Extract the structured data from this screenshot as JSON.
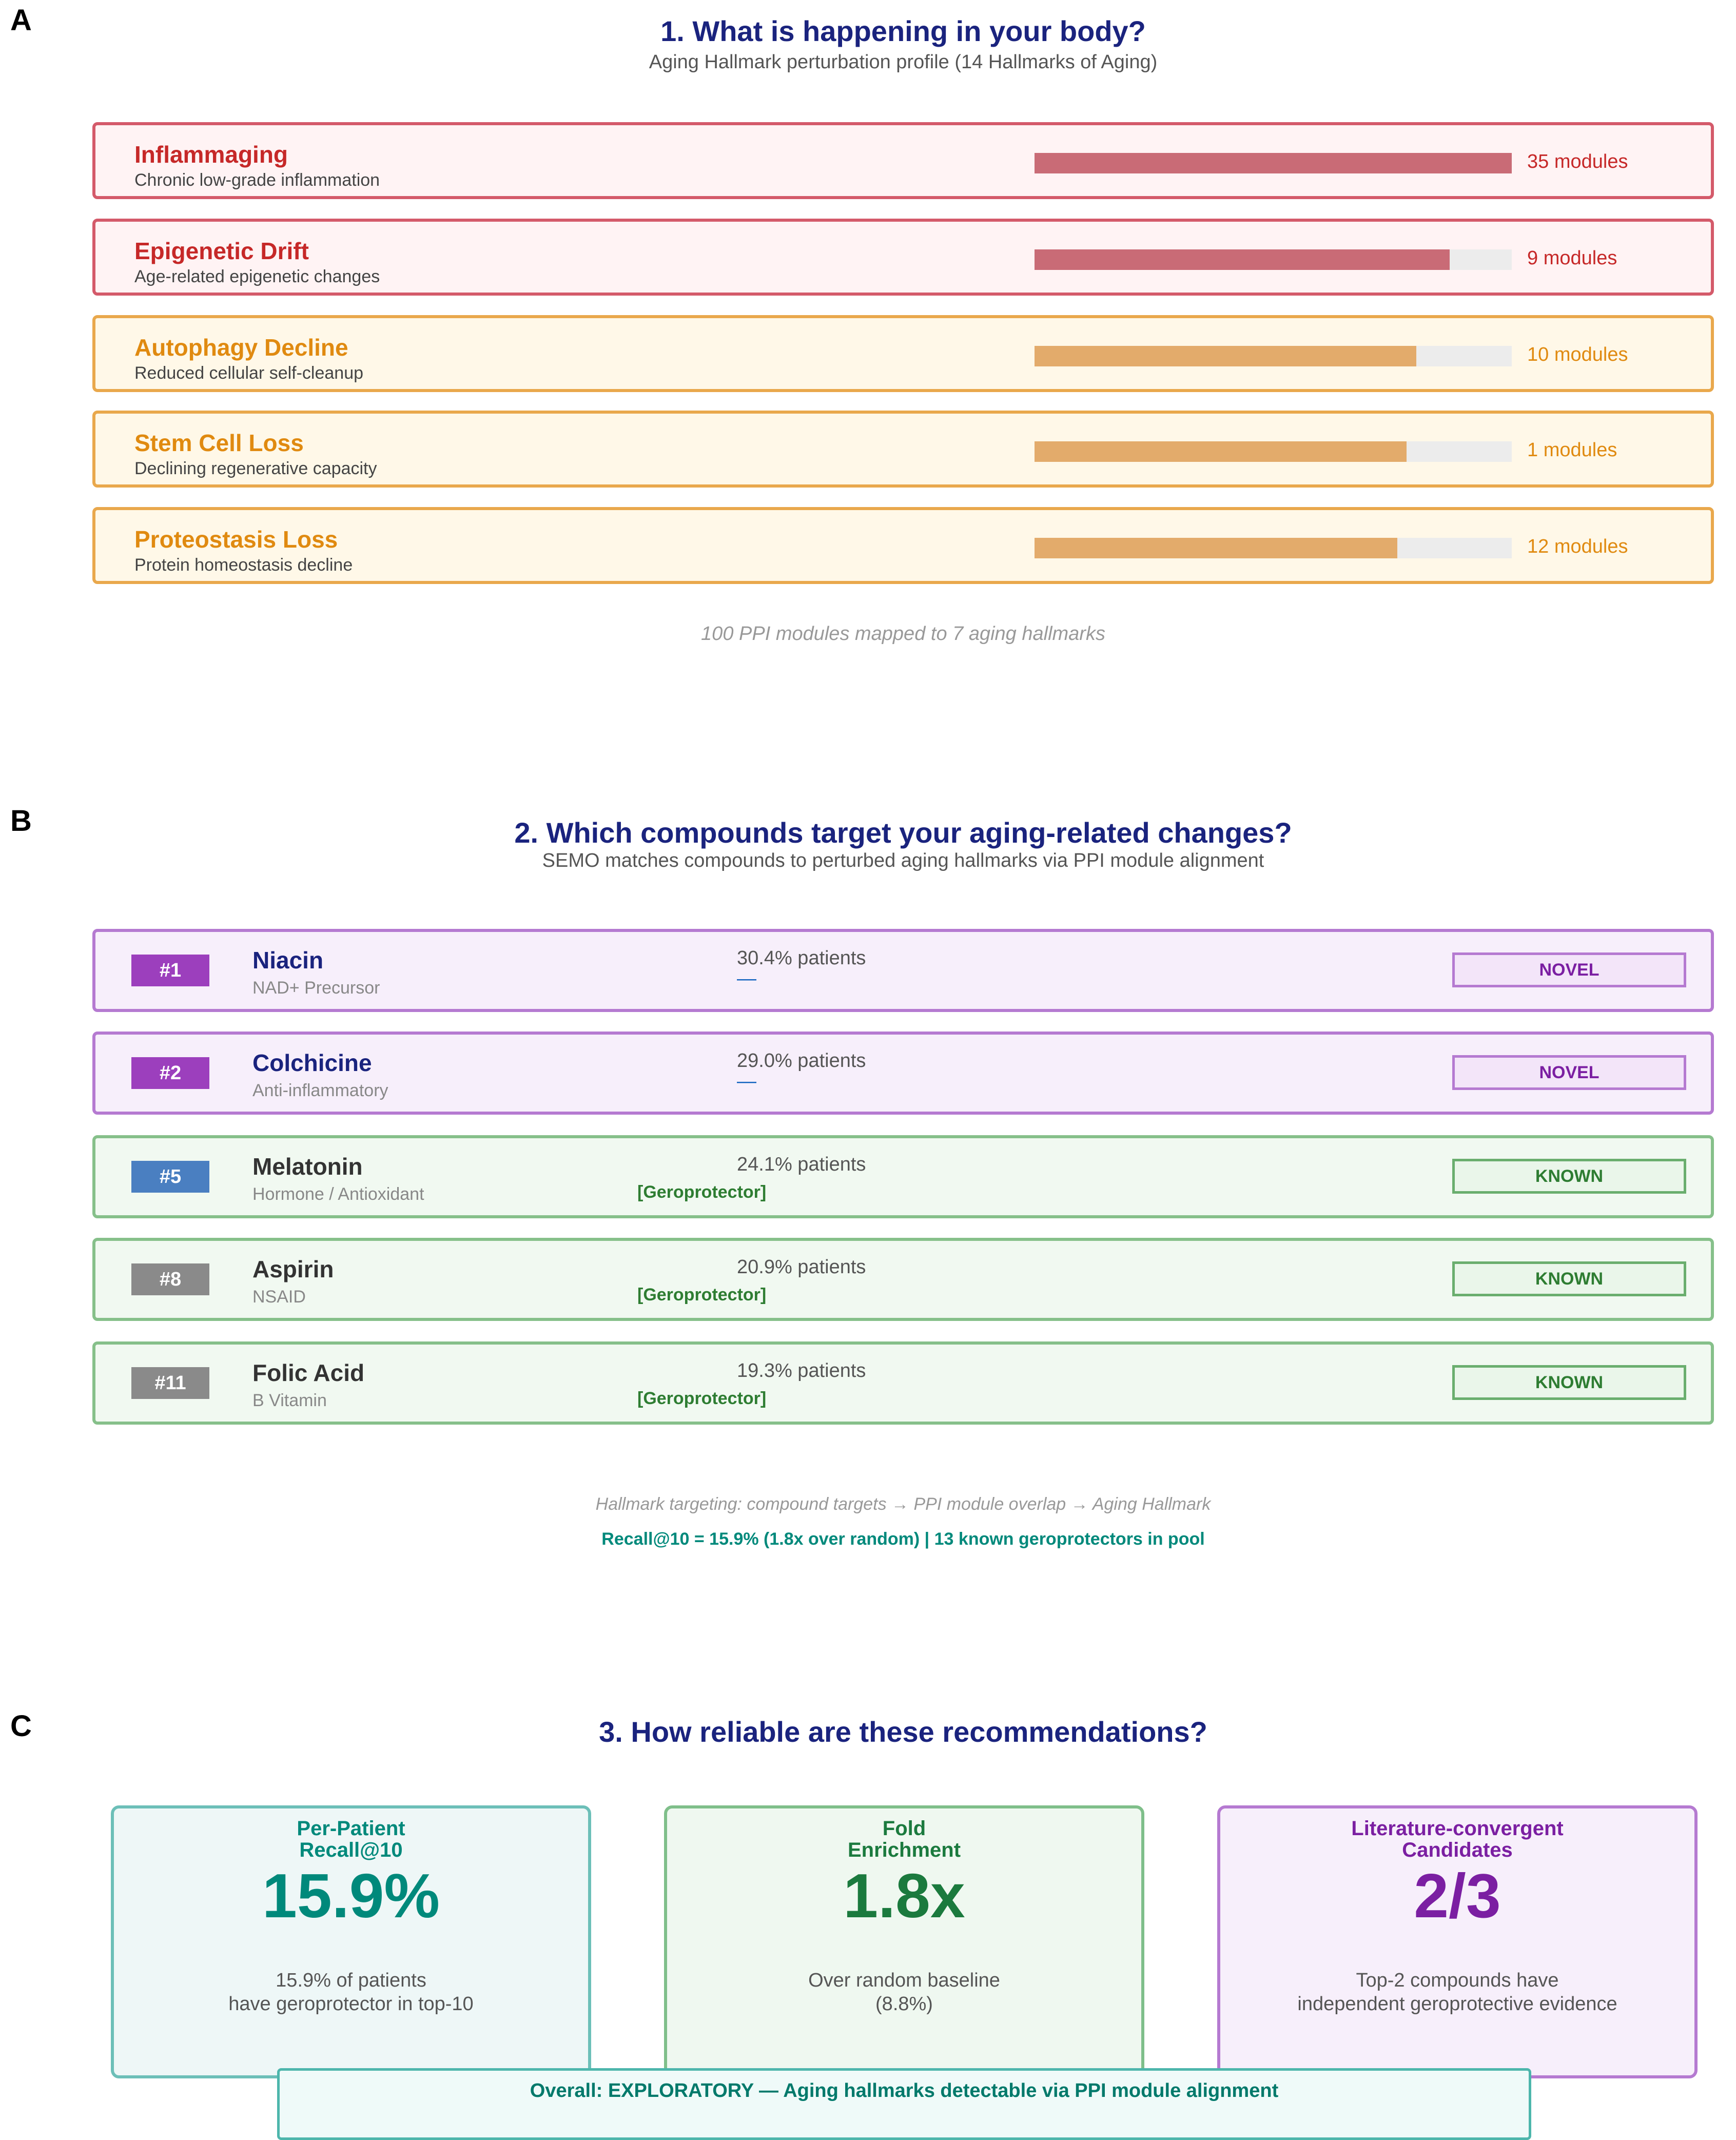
{
  "panels": {
    "a": {
      "letter": "A",
      "title": "1. What is happening in your body?",
      "subtitle": "Aging Hallmark perturbation profile (14 Hallmarks of Aging)",
      "footnote": "100 PPI modules mapped to 7 aging hallmarks",
      "hallmarks": [
        {
          "name": "Inflammaging",
          "desc": "Chronic low-grade inflammation",
          "count": "35 modules",
          "fill": 1.0,
          "color": "#c62828",
          "bar": "#c96b76",
          "border": "#d45a6a",
          "bg": "#fff3f4"
        },
        {
          "name": "Epigenetic Drift",
          "desc": "Age-related epigenetic changes",
          "count": "9 modules",
          "fill": 0.87,
          "color": "#c62828",
          "bar": "#c96b76",
          "border": "#d45a6a",
          "bg": "#fff3f4"
        },
        {
          "name": "Autophagy Decline",
          "desc": "Reduced cellular self-cleanup",
          "count": "10 modules",
          "fill": 0.8,
          "color": "#e08a10",
          "bar": "#e3ab6b",
          "border": "#e9a84c",
          "bg": "#fff8e8"
        },
        {
          "name": "Stem Cell Loss",
          "desc": "Declining regenerative capacity",
          "count": "1 modules",
          "fill": 0.78,
          "color": "#e08a10",
          "bar": "#e3ab6b",
          "border": "#e9a84c",
          "bg": "#fff8e8"
        },
        {
          "name": "Proteostasis Loss",
          "desc": "Protein homeostasis decline",
          "count": "12 modules",
          "fill": 0.76,
          "color": "#e08a10",
          "bar": "#e3ab6b",
          "border": "#e9a84c",
          "bg": "#fff8e8"
        }
      ]
    },
    "b": {
      "letter": "B",
      "title": "2. Which compounds target your aging-related changes?",
      "subtitle": "SEMO matches compounds to perturbed aging hallmarks via PPI module alignment",
      "footnote": "Hallmark targeting: compound targets → PPI module overlap → Aging Hallmark",
      "recall_line": "Recall@10 = 15.9% (1.8x over random) | 13 known geroprotectors in pool",
      "compounds": [
        {
          "rank": "#1",
          "name": "Niacin",
          "class": "NAD+ Precursor",
          "patients": "30.4% patients",
          "mark": "—",
          "gero": "",
          "status": "NOVEL",
          "rank_color": "#9c3fbd",
          "name_color": "#1a237e",
          "border": "#b57ad1",
          "bg": "#f7effb",
          "badge_color": "#7b1fa2",
          "badge_border": "#b57ad1",
          "badge_bg": "#f3e5f9"
        },
        {
          "rank": "#2",
          "name": "Colchicine",
          "class": "Anti-inflammatory",
          "patients": "29.0% patients",
          "mark": "—",
          "gero": "",
          "status": "NOVEL",
          "rank_color": "#9c3fbd",
          "name_color": "#1a237e",
          "border": "#b57ad1",
          "bg": "#f7effb",
          "badge_color": "#7b1fa2",
          "badge_border": "#b57ad1",
          "badge_bg": "#f3e5f9"
        },
        {
          "rank": "#5",
          "name": "Melatonin",
          "class": "Hormone / Antioxidant",
          "patients": "24.1% patients",
          "mark": "",
          "gero": "[Geroprotector]",
          "status": "KNOWN",
          "rank_color": "#4a7fc1",
          "name_color": "#333333",
          "border": "#86c08a",
          "bg": "#f1f9f1",
          "badge_color": "#2e7d32",
          "badge_border": "#6aae6e",
          "badge_bg": "#eaf6ea"
        },
        {
          "rank": "#8",
          "name": "Aspirin",
          "class": "NSAID",
          "patients": "20.9% patients",
          "mark": "",
          "gero": "[Geroprotector]",
          "status": "KNOWN",
          "rank_color": "#8a8a8a",
          "name_color": "#333333",
          "border": "#86c08a",
          "bg": "#f1f9f1",
          "badge_color": "#2e7d32",
          "badge_border": "#6aae6e",
          "badge_bg": "#eaf6ea"
        },
        {
          "rank": "#11",
          "name": "Folic Acid",
          "class": "B Vitamin",
          "patients": "19.3% patients",
          "mark": "",
          "gero": "[Geroprotector]",
          "status": "KNOWN",
          "rank_color": "#8a8a8a",
          "name_color": "#333333",
          "border": "#86c08a",
          "bg": "#f1f9f1",
          "badge_color": "#2e7d32",
          "badge_border": "#6aae6e",
          "badge_bg": "#eaf6ea"
        }
      ]
    },
    "c": {
      "letter": "C",
      "title": "3. How reliable are these recommendations?",
      "cards": [
        {
          "label_1": "Per-Patient",
          "label_2": "Recall@10",
          "value": "15.9%",
          "desc_1": "15.9% of patients",
          "desc_2": "have geroprotector in top-10",
          "color": "#00897b",
          "border": "#6cbfb8",
          "bg": "#eef7f7"
        },
        {
          "label_1": "Fold",
          "label_2": "Enrichment",
          "value": "1.8x",
          "desc_1": "Over random baseline",
          "desc_2": "(8.8%)",
          "color": "#1b7a3e",
          "border": "#7fbf8a",
          "bg": "#eff8f0"
        },
        {
          "label_1": "Literature-convergent",
          "label_2": "Candidates",
          "value": "2/3",
          "desc_1": "Top-2 compounds have",
          "desc_2": "independent geroprotective evidence",
          "color": "#7b1fa2",
          "border": "#b57ad1",
          "bg": "#f7effb"
        }
      ],
      "overall": "Overall: EXPLORATORY — Aging hallmarks detectable via PPI module alignment"
    }
  }
}
